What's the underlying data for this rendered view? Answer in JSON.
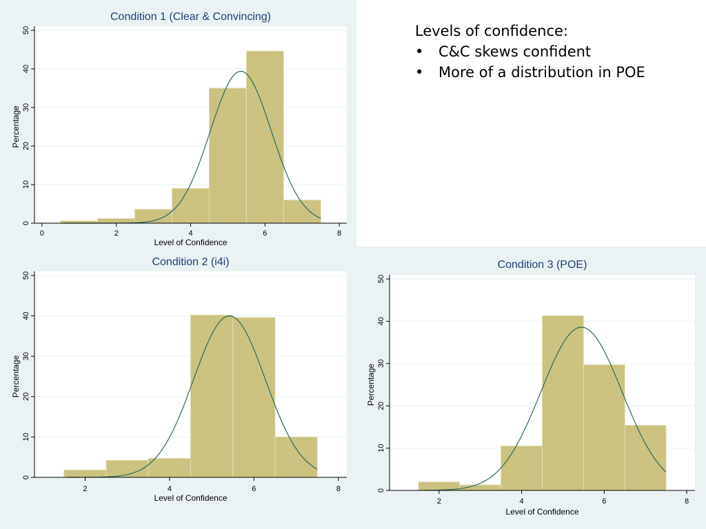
{
  "notes": {
    "heading": "Levels of confidence:",
    "bullets": [
      "C&C skews confident",
      "More of a distribution in POE"
    ]
  },
  "colors": {
    "panel_bg": "#eaf2f3",
    "bar_fill": "#cbc280",
    "bar_stroke": "#e2dcb0",
    "curve": "#2a6a5e",
    "title": "#1f3f73"
  },
  "chart_data": [
    {
      "id": "c1",
      "type": "bar",
      "title": "Condition 1 (Clear & Convincing)",
      "xlabel": "Level of Confidence",
      "ylabel": "Percentage",
      "xlim": [
        -0.2,
        8.2
      ],
      "ylim": [
        0,
        50
      ],
      "xticks": [
        0,
        2,
        4,
        6,
        8
      ],
      "yticks": [
        0,
        10,
        20,
        30,
        40,
        50
      ],
      "bins": [
        {
          "x0": 0.5,
          "x1": 1.5,
          "value": 0.6
        },
        {
          "x0": 1.5,
          "x1": 2.5,
          "value": 1.2
        },
        {
          "x0": 2.5,
          "x1": 3.5,
          "value": 3.6
        },
        {
          "x0": 3.5,
          "x1": 4.5,
          "value": 9.0
        },
        {
          "x0": 4.5,
          "x1": 5.5,
          "value": 35.0
        },
        {
          "x0": 5.5,
          "x1": 6.5,
          "value": 44.6
        },
        {
          "x0": 6.5,
          "x1": 7.5,
          "value": 6.0
        }
      ],
      "normal_curve": {
        "mean": 5.35,
        "sd": 0.82,
        "peak": 39.4,
        "x_range": [
          0.6,
          7.5
        ]
      },
      "grid": true
    },
    {
      "id": "c2",
      "type": "bar",
      "title": "Condition 2 (i4i)",
      "xlabel": "Level of Confidence",
      "ylabel": "Percentage",
      "xlim": [
        0.8,
        8.2
      ],
      "ylim": [
        0,
        50
      ],
      "xticks": [
        2,
        4,
        6,
        8
      ],
      "yticks": [
        0,
        10,
        20,
        30,
        40,
        50
      ],
      "bins": [
        {
          "x0": 1.5,
          "x1": 2.5,
          "value": 1.8
        },
        {
          "x0": 2.5,
          "x1": 3.5,
          "value": 4.2
        },
        {
          "x0": 3.5,
          "x1": 4.5,
          "value": 4.7
        },
        {
          "x0": 4.5,
          "x1": 5.5,
          "value": 40.2
        },
        {
          "x0": 5.5,
          "x1": 6.5,
          "value": 39.6
        },
        {
          "x0": 6.5,
          "x1": 7.5,
          "value": 10.0
        }
      ],
      "normal_curve": {
        "mean": 5.42,
        "sd": 0.85,
        "peak": 40.0,
        "x_range": [
          1.6,
          7.5
        ]
      },
      "grid": true
    },
    {
      "id": "c3",
      "type": "bar",
      "title": "Condition 3 (POE)",
      "xlabel": "Level of Confidence",
      "ylabel": "Percentage",
      "xlim": [
        0.8,
        8.2
      ],
      "ylim": [
        0,
        50
      ],
      "xticks": [
        2,
        4,
        6,
        8
      ],
      "yticks": [
        0,
        10,
        20,
        30,
        40,
        50
      ],
      "bins": [
        {
          "x0": 1.5,
          "x1": 2.5,
          "value": 2.0
        },
        {
          "x0": 2.5,
          "x1": 3.5,
          "value": 1.3
        },
        {
          "x0": 3.5,
          "x1": 4.5,
          "value": 10.5
        },
        {
          "x0": 4.5,
          "x1": 5.5,
          "value": 41.3
        },
        {
          "x0": 5.5,
          "x1": 6.5,
          "value": 29.7
        },
        {
          "x0": 6.5,
          "x1": 7.5,
          "value": 15.4
        }
      ],
      "normal_curve": {
        "mean": 5.45,
        "sd": 0.98,
        "peak": 38.6,
        "x_range": [
          1.6,
          7.5
        ]
      },
      "grid": true
    }
  ]
}
